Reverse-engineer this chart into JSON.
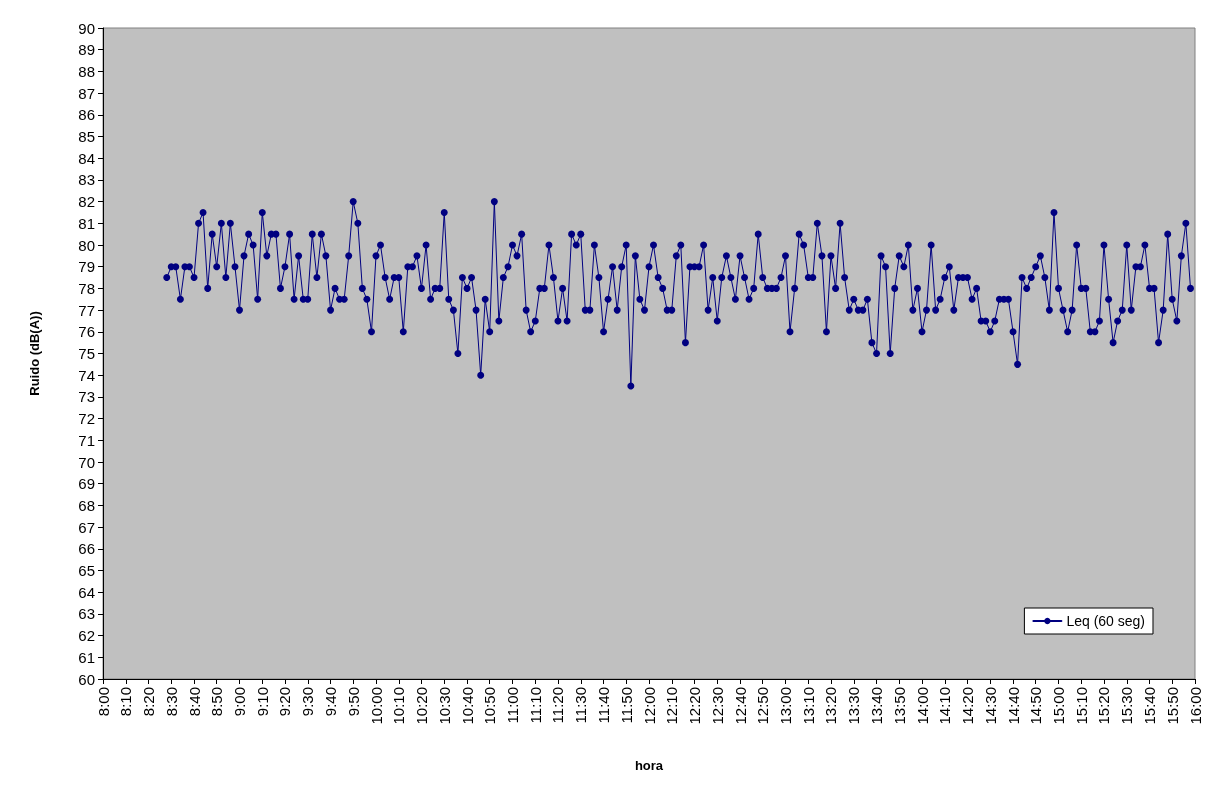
{
  "chart_data": {
    "type": "line",
    "xlabel": "hora",
    "ylabel": "Ruido (dB(A))",
    "legend": "bottom right",
    "grid": false,
    "marker": "circle",
    "line_style": "solid",
    "xlim": [
      8,
      16
    ],
    "ylim": [
      60,
      90
    ],
    "yticks": [
      60,
      61,
      62,
      63,
      64,
      65,
      66,
      67,
      68,
      69,
      70,
      71,
      72,
      73,
      74,
      75,
      76,
      77,
      78,
      79,
      80,
      81,
      82,
      83,
      84,
      85,
      86,
      87,
      88,
      89,
      90
    ],
    "xticks": [
      {
        "value": 8,
        "label": "8:00"
      },
      {
        "value": 8.167,
        "label": "8:10"
      },
      {
        "value": 8.333,
        "label": "8:20"
      },
      {
        "value": 8.5,
        "label": "8:30"
      },
      {
        "value": 8.667,
        "label": "8:40"
      },
      {
        "value": 8.833,
        "label": "8:50"
      },
      {
        "value": 9,
        "label": "9:00"
      },
      {
        "value": 9.167,
        "label": "9:10"
      },
      {
        "value": 9.333,
        "label": "9:20"
      },
      {
        "value": 9.5,
        "label": "9:30"
      },
      {
        "value": 9.667,
        "label": "9:40"
      },
      {
        "value": 9.833,
        "label": "9:50"
      },
      {
        "value": 10,
        "label": "10:00"
      },
      {
        "value": 10.167,
        "label": "10:10"
      },
      {
        "value": 10.333,
        "label": "10:20"
      },
      {
        "value": 10.5,
        "label": "10:30"
      },
      {
        "value": 10.667,
        "label": "10:40"
      },
      {
        "value": 10.833,
        "label": "10:50"
      },
      {
        "value": 11,
        "label": "11:00"
      },
      {
        "value": 11.167,
        "label": "11:10"
      },
      {
        "value": 11.333,
        "label": "11:20"
      },
      {
        "value": 11.5,
        "label": "11:30"
      },
      {
        "value": 11.667,
        "label": "11:40"
      },
      {
        "value": 11.833,
        "label": "11:50"
      },
      {
        "value": 12,
        "label": "12:00"
      },
      {
        "value": 12.167,
        "label": "12:10"
      },
      {
        "value": 12.333,
        "label": "12:20"
      },
      {
        "value": 12.5,
        "label": "12:30"
      },
      {
        "value": 12.667,
        "label": "12:40"
      },
      {
        "value": 12.833,
        "label": "12:50"
      },
      {
        "value": 13,
        "label": "13:00"
      },
      {
        "value": 13.167,
        "label": "13:10"
      },
      {
        "value": 13.333,
        "label": "13:20"
      },
      {
        "value": 13.5,
        "label": "13:30"
      },
      {
        "value": 13.667,
        "label": "13:40"
      },
      {
        "value": 13.833,
        "label": "13:50"
      },
      {
        "value": 14,
        "label": "14:00"
      },
      {
        "value": 14.167,
        "label": "14:10"
      },
      {
        "value": 14.333,
        "label": "14:20"
      },
      {
        "value": 14.5,
        "label": "14:30"
      },
      {
        "value": 14.667,
        "label": "14:40"
      },
      {
        "value": 14.833,
        "label": "14:50"
      },
      {
        "value": 15,
        "label": "15:00"
      },
      {
        "value": 15.167,
        "label": "15:10"
      },
      {
        "value": 15.333,
        "label": "15:20"
      },
      {
        "value": 15.5,
        "label": "15:30"
      },
      {
        "value": 15.667,
        "label": "15:40"
      },
      {
        "value": 15.833,
        "label": "15:50"
      },
      {
        "value": 16,
        "label": "16:00"
      }
    ],
    "x": [
      8.467,
      8.5,
      8.533,
      8.567,
      8.6,
      8.633,
      8.667,
      8.7,
      8.733,
      8.767,
      8.8,
      8.833,
      8.867,
      8.9,
      8.933,
      8.967,
      9,
      9.033,
      9.067,
      9.1,
      9.133,
      9.167,
      9.2,
      9.233,
      9.267,
      9.3,
      9.333,
      9.367,
      9.4,
      9.433,
      9.467,
      9.5,
      9.533,
      9.567,
      9.6,
      9.633,
      9.667,
      9.7,
      9.733,
      9.767,
      9.8,
      9.833,
      9.867,
      9.9,
      9.933,
      9.967,
      10,
      10.033,
      10.067,
      10.1,
      10.133,
      10.167,
      10.2,
      10.233,
      10.267,
      10.3,
      10.333,
      10.367,
      10.4,
      10.433,
      10.467,
      10.5,
      10.533,
      10.567,
      10.6,
      10.633,
      10.667,
      10.7,
      10.733,
      10.767,
      10.8,
      10.833,
      10.867,
      10.9,
      10.933,
      10.967,
      11,
      11.033,
      11.067,
      11.1,
      11.133,
      11.167,
      11.2,
      11.233,
      11.267,
      11.3,
      11.333,
      11.367,
      11.4,
      11.433,
      11.467,
      11.5,
      11.533,
      11.567,
      11.6,
      11.633,
      11.667,
      11.7,
      11.733,
      11.767,
      11.8,
      11.833,
      11.867,
      11.9,
      11.933,
      11.967,
      12,
      12.033,
      12.067,
      12.1,
      12.133,
      12.167,
      12.2,
      12.233,
      12.267,
      12.3,
      12.333,
      12.367,
      12.4,
      12.433,
      12.467,
      12.5,
      12.533,
      12.567,
      12.6,
      12.633,
      12.667,
      12.7,
      12.733,
      12.767,
      12.8,
      12.833,
      12.867,
      12.9,
      12.933,
      12.967,
      13,
      13.033,
      13.067,
      13.1,
      13.133,
      13.167,
      13.2,
      13.233,
      13.267,
      13.3,
      13.333,
      13.367,
      13.4,
      13.433,
      13.467,
      13.5,
      13.533,
      13.567,
      13.6,
      13.633,
      13.667,
      13.7,
      13.733,
      13.767,
      13.8,
      13.833,
      13.867,
      13.9,
      13.933,
      13.967,
      14,
      14.033,
      14.067,
      14.1,
      14.133,
      14.167,
      14.2,
      14.233,
      14.267,
      14.3,
      14.333,
      14.367,
      14.4,
      14.433,
      14.467,
      14.5,
      14.533,
      14.567,
      14.6,
      14.633,
      14.667,
      14.7,
      14.733,
      14.767,
      14.8,
      14.833,
      14.867,
      14.9,
      14.933,
      14.967,
      15,
      15.033,
      15.067,
      15.1,
      15.133,
      15.167,
      15.2,
      15.233,
      15.267,
      15.3,
      15.333,
      15.367,
      15.4,
      15.433,
      15.467,
      15.5,
      15.533,
      15.567,
      15.6,
      15.633,
      15.667,
      15.7,
      15.733,
      15.767,
      15.8,
      15.833,
      15.867,
      15.9,
      15.933,
      15.967
    ],
    "series": [
      {
        "name": "Leq (60 seg)",
        "color": "#000080",
        "values": [
          78.5,
          79,
          79,
          77.5,
          79,
          79,
          78.5,
          81,
          81.5,
          78,
          80.5,
          79,
          81,
          78.5,
          81,
          79,
          77,
          79.5,
          80.5,
          80,
          77.5,
          81.5,
          79.5,
          80.5,
          80.5,
          78,
          79,
          80.5,
          77.5,
          79.5,
          77.5,
          77.5,
          80.5,
          78.5,
          80.5,
          79.5,
          77,
          78,
          77.5,
          77.5,
          79.5,
          82,
          81,
          78,
          77.5,
          76,
          79.5,
          80,
          78.5,
          77.5,
          78.5,
          78.5,
          76,
          79,
          79,
          79.5,
          78,
          80,
          77.5,
          78,
          78,
          81.5,
          77.5,
          77,
          75,
          78.5,
          78,
          78.5,
          77,
          74,
          77.5,
          76,
          82,
          76.5,
          78.5,
          79,
          80,
          79.5,
          80.5,
          77,
          76,
          76.5,
          78,
          78,
          80,
          78.5,
          76.5,
          78,
          76.5,
          80.5,
          80,
          80.5,
          77,
          77,
          80,
          78.5,
          76,
          77.5,
          79,
          77,
          79,
          80,
          73.5,
          79.5,
          77.5,
          77,
          79,
          80,
          78.5,
          78,
          77,
          77,
          79.5,
          80,
          75.5,
          79,
          79,
          79,
          80,
          77,
          78.5,
          76.5,
          78.5,
          79.5,
          78.5,
          77.5,
          79.5,
          78.5,
          77.5,
          78,
          80.5,
          78.5,
          78,
          78,
          78,
          78.5,
          79.5,
          76,
          78,
          80.5,
          80,
          78.5,
          78.5,
          81,
          79.5,
          76,
          79.5,
          78,
          81,
          78.5,
          77,
          77.5,
          77,
          77,
          77.5,
          75.5,
          75,
          79.5,
          79,
          75,
          78,
          79.5,
          79,
          80,
          77,
          78,
          76,
          77,
          80,
          77,
          77.5,
          78.5,
          79,
          77,
          78.5,
          78.5,
          78.5,
          77.5,
          78,
          76.5,
          76.5,
          76,
          76.5,
          77.5,
          77.5,
          77.5,
          76,
          74.5,
          78.5,
          78,
          78.5,
          79,
          79.5,
          78.5,
          77,
          81.5,
          78,
          77,
          76,
          77,
          80,
          78,
          78,
          76,
          76,
          76.5,
          80,
          77.5,
          75.5,
          76.5,
          77,
          80,
          77,
          79,
          79,
          80,
          78,
          78,
          75.5,
          77,
          80.5,
          77.5,
          76.5,
          79.5,
          81,
          78
        ]
      }
    ]
  }
}
